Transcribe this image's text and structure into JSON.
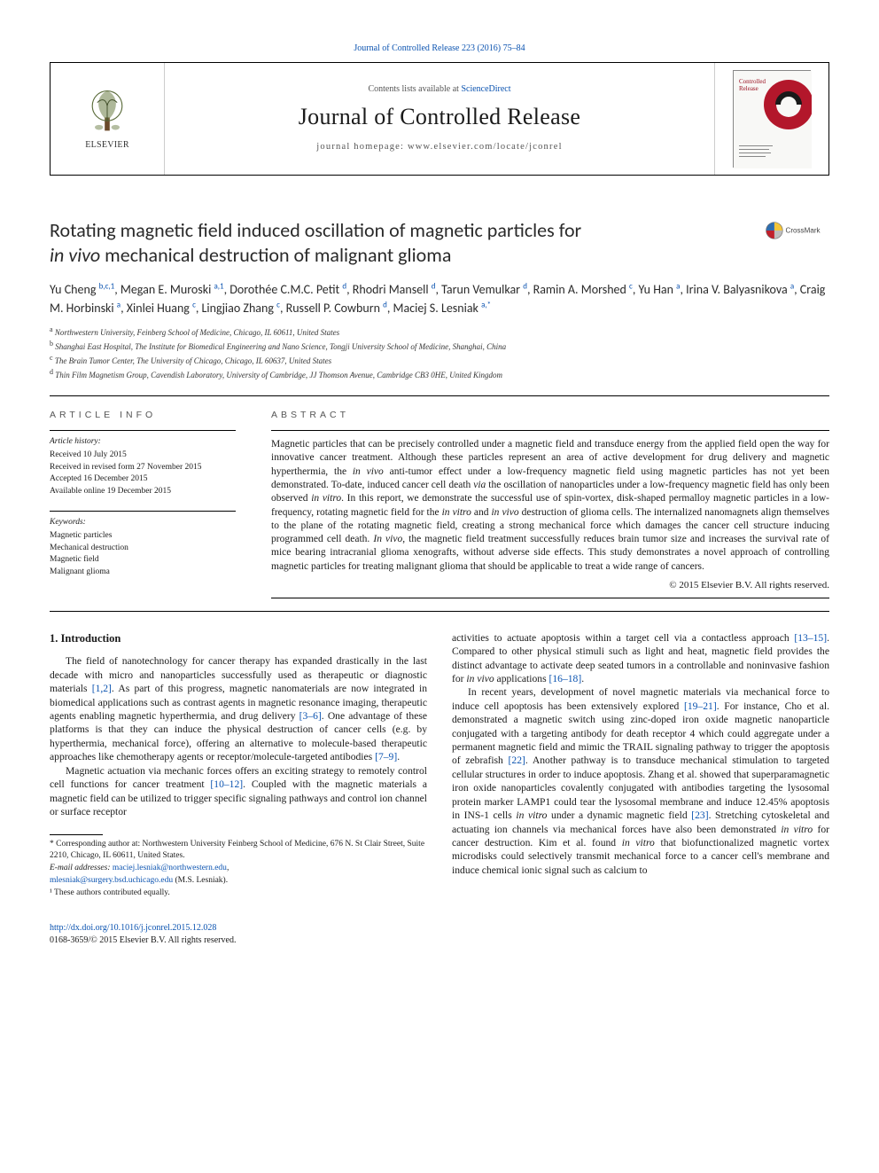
{
  "colors": {
    "link": "#0b53b0",
    "text": "#1a1a1a",
    "muted": "#555555",
    "border": "#000000",
    "crossmark_red": "#c0202b",
    "crossmark_yellow": "#f5c639",
    "crossmark_grey": "#bdbdbd",
    "crossmark_blue": "#2f6eb0",
    "elsevier_orange": "#ee7f1a",
    "cover_red": "#b3172b"
  },
  "header": {
    "top_link_prefix": "Journal of Controlled Release 223 (2016) 75–84",
    "contents_prefix": "Contents lists available at ",
    "contents_link": "ScienceDirect",
    "journal_name": "Journal of Controlled Release",
    "homepage_prefix": "journal homepage: ",
    "homepage_url": "www.elsevier.com/locate/jconrel",
    "elsevier": "ELSEVIER",
    "cover_line1": "Controlled",
    "cover_line2": "Release"
  },
  "title": {
    "line1": "Rotating magnetic field induced oscillation of magnetic particles for",
    "line2_pre": "",
    "line2_ital": "in vivo",
    "line2_post": " mechanical destruction of malignant glioma",
    "crossmark_label": "CrossMark"
  },
  "authors_html": "Yu Cheng <sup>b,c,1</sup>, Megan E. Muroski <sup>a,1</sup>, Dorothée C.M.C. Petit <sup>d</sup>, Rhodri Mansell <sup>d</sup>, Tarun Vemulkar <sup>d</sup>, Ramin A. Morshed <sup>c</sup>, Yu Han <sup>a</sup>, Irina V. Balyasnikova <sup>a</sup>, Craig M. Horbinski <sup>a</sup>, Xinlei Huang <sup>c</sup>, Lingjiao Zhang <sup>c</sup>, Russell P. Cowburn <sup>d</sup>, Maciej S. Lesniak <sup>a,*</sup>",
  "affiliations": [
    {
      "sup": "a",
      "text": "Northwestern University, Feinberg School of Medicine, Chicago, IL 60611, United States"
    },
    {
      "sup": "b",
      "text": "Shanghai East Hospital, The Institute for Biomedical Engineering and Nano Science, Tongji University School of Medicine, Shanghai, China"
    },
    {
      "sup": "c",
      "text": "The Brain Tumor Center, The University of Chicago, Chicago, IL 60637, United States"
    },
    {
      "sup": "d",
      "text": "Thin Film Magnetism Group, Cavendish Laboratory, University of Cambridge, JJ Thomson Avenue, Cambridge CB3 0HE, United Kingdom"
    }
  ],
  "article_info": {
    "heading": "ARTICLE INFO",
    "history_head": "Article history:",
    "history": [
      "Received 10 July 2015",
      "Received in revised form 27 November 2015",
      "Accepted 16 December 2015",
      "Available online 19 December 2015"
    ],
    "keywords_head": "Keywords:",
    "keywords": [
      "Magnetic particles",
      "Mechanical destruction",
      "Magnetic field",
      "Malignant glioma"
    ]
  },
  "abstract": {
    "heading": "ABSTRACT",
    "text": "Magnetic particles that can be precisely controlled under a magnetic field and transduce energy from the applied field open the way for innovative cancer treatment. Although these particles represent an area of active development for drug delivery and magnetic hyperthermia, the <span class=\"ital\">in vivo</span> anti-tumor effect under a low-frequency magnetic field using magnetic particles has not yet been demonstrated. To-date, induced cancer cell death <span class=\"ital\">via</span> the oscillation of nanoparticles under a low-frequency magnetic field has only been observed <span class=\"ital\">in vitro</span>. In this report, we demonstrate the successful use of spin-vortex, disk-shaped permalloy magnetic particles in a low-frequency, rotating magnetic field for the <span class=\"ital\">in vitro</span> and <span class=\"ital\">in vivo</span> destruction of glioma cells. The internalized nanomagnets align themselves to the plane of the rotating magnetic field, creating a strong mechanical force which damages the cancer cell structure inducing programmed cell death. <span class=\"ital\">In vivo</span>, the magnetic field treatment successfully reduces brain tumor size and increases the survival rate of mice bearing intracranial glioma xenografts, without adverse side effects. This study demonstrates a novel approach of controlling magnetic particles for treating malignant glioma that should be applicable to treat a wide range of cancers.",
    "copyright": "© 2015 Elsevier B.V. All rights reserved."
  },
  "body": {
    "section_heading": "1. Introduction",
    "left_paragraphs": [
      "The field of nanotechnology for cancer therapy has expanded drastically in the last decade with micro and nanoparticles successfully used as therapeutic or diagnostic materials <a class=\"ref link-blue\" href=\"#\">[1,2]</a>. As part of this progress, magnetic nanomaterials are now integrated in biomedical applications such as contrast agents in magnetic resonance imaging, therapeutic agents enabling magnetic hyperthermia, and drug delivery <a class=\"ref link-blue\" href=\"#\">[3–6]</a>. One advantage of these platforms is that they can induce the physical destruction of cancer cells (e.g. by hyperthermia, mechanical force), offering an alternative to molecule-based therapeutic approaches like chemotherapy agents or receptor/molecule-targeted antibodies <a class=\"ref link-blue\" href=\"#\">[7–9]</a>.",
      "Magnetic actuation via mechanic forces offers an exciting strategy to remotely control cell functions for cancer treatment <a class=\"ref link-blue\" href=\"#\">[10–12]</a>. Coupled with the magnetic materials a magnetic field can be utilized to trigger specific signaling pathways and control ion channel or surface receptor"
    ],
    "right_paragraphs": [
      "activities to actuate apoptosis within a target cell via a contactless approach <a class=\"ref link-blue\" href=\"#\">[13–15]</a>. Compared to other physical stimuli such as light and heat, magnetic field provides the distinct advantage to activate deep seated tumors in a controllable and noninvasive fashion for <span class=\"ital\">in vivo</span> applications <a class=\"ref link-blue\" href=\"#\">[16–18]</a>.",
      "In recent years, development of novel magnetic materials via mechanical force to induce cell apoptosis has been extensively explored <a class=\"ref link-blue\" href=\"#\">[19–21]</a>. For instance, Cho et al. demonstrated a magnetic switch using zinc-doped iron oxide magnetic nanoparticle conjugated with a targeting antibody for death receptor 4 which could aggregate under a permanent magnetic field and mimic the TRAIL signaling pathway to trigger the apoptosis of zebrafish <a class=\"ref link-blue\" href=\"#\">[22]</a>. Another pathway is to transduce mechanical stimulation to targeted cellular structures in order to induce apoptosis. Zhang et al. showed that superparamagnetic iron oxide nanoparticles covalently conjugated with antibodies targeting the lysosomal protein marker LAMP1 could tear the lysosomal membrane and induce 12.45% apoptosis in INS-1 cells <span class=\"ital\">in vitro</span> under a dynamic magnetic field <a class=\"ref link-blue\" href=\"#\">[23]</a>. Stretching cytoskeletal and actuating ion channels via mechanical forces have also been demonstrated <span class=\"ital\">in vitro</span> for cancer destruction. Kim et al. found <span class=\"ital\">in vitro</span> that biofunctionalized magnetic vortex microdisks could selectively transmit mechanical force to a cancer cell's membrane and induce chemical ionic signal such as calcium to"
    ]
  },
  "footnotes": {
    "corresponding": "* Corresponding author at: Northwestern University Feinberg School of Medicine, 676 N. St Clair Street, Suite 2210, Chicago, IL 60611, United States.",
    "email_label": "E-mail addresses: ",
    "email1": "maciej.lesniak@northwestern.edu",
    "email2": "mlesniak@surgery.bsd.uchicago.edu",
    "email_suffix": " (M.S. Lesniak).",
    "equal": "¹ These authors contributed equally."
  },
  "footer": {
    "doi": "http://dx.doi.org/10.1016/j.jconrel.2015.12.028",
    "issn_line": "0168-3659/© 2015 Elsevier B.V. All rights reserved."
  }
}
